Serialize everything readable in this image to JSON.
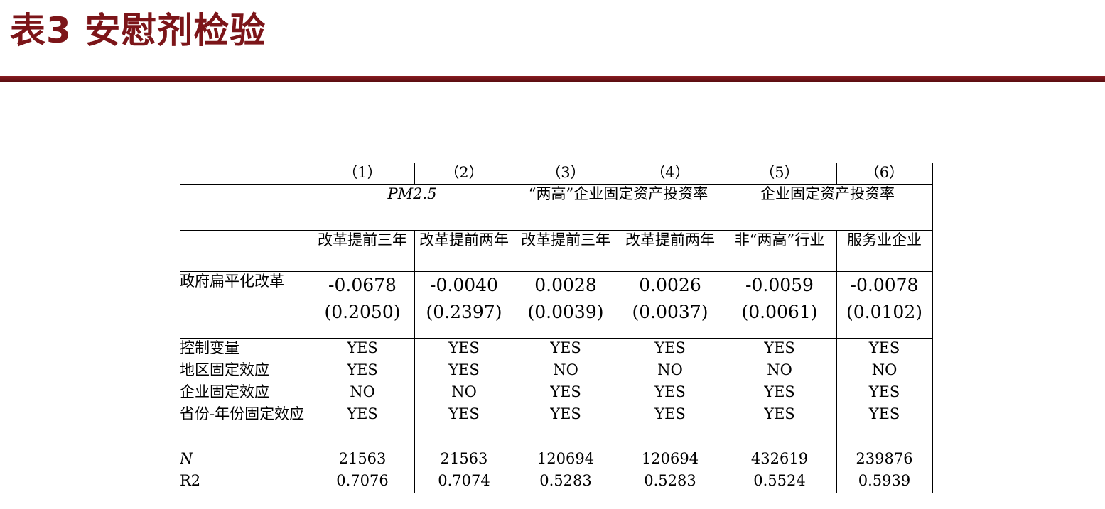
{
  "slide": {
    "title": "表3   安慰剂检验"
  },
  "table": {
    "col_numbers": [
      "（1）",
      "（2）",
      "（3）",
      "（4）",
      "（5）",
      "（6）"
    ],
    "dep_vars": {
      "g1": "PM2.5",
      "g2": "“两高”企业固定资产投资率",
      "g3": "企业固定资产投资率"
    },
    "subheads": [
      "改革提前三年",
      "改革提前两年",
      "改革提前三年",
      "改革提前两年",
      "非“两高”行业",
      "服务业企业"
    ],
    "treatment": {
      "label": "政府扁平化改革",
      "coefs": [
        "-0.0678",
        "-0.0040",
        "0.0028",
        "0.0026",
        "-0.0059",
        "-0.0078"
      ],
      "ses": [
        "(0.2050)",
        "(0.2397)",
        "(0.0039)",
        "(0.0037)",
        "(0.0061)",
        "(0.0102)"
      ]
    },
    "controls": [
      {
        "label": "控制变量",
        "values": [
          "YES",
          "YES",
          "YES",
          "YES",
          "YES",
          "YES"
        ]
      },
      {
        "label": "地区固定效应",
        "values": [
          "YES",
          "YES",
          "NO",
          "NO",
          "NO",
          "NO"
        ]
      },
      {
        "label": "企业固定效应",
        "values": [
          "NO",
          "NO",
          "YES",
          "YES",
          "YES",
          "YES"
        ]
      },
      {
        "label": "省份-年份固定效应",
        "values": [
          "YES",
          "YES",
          "YES",
          "YES",
          "YES",
          "YES"
        ]
      }
    ],
    "n_row": {
      "label": "N",
      "values": [
        "21563",
        "21563",
        "120694",
        "120694",
        "432619",
        "239876"
      ]
    },
    "r2_row": {
      "label": "R2",
      "values": [
        "0.7076",
        "0.7074",
        "0.5283",
        "0.5283",
        "0.5524",
        "0.5939"
      ]
    }
  }
}
